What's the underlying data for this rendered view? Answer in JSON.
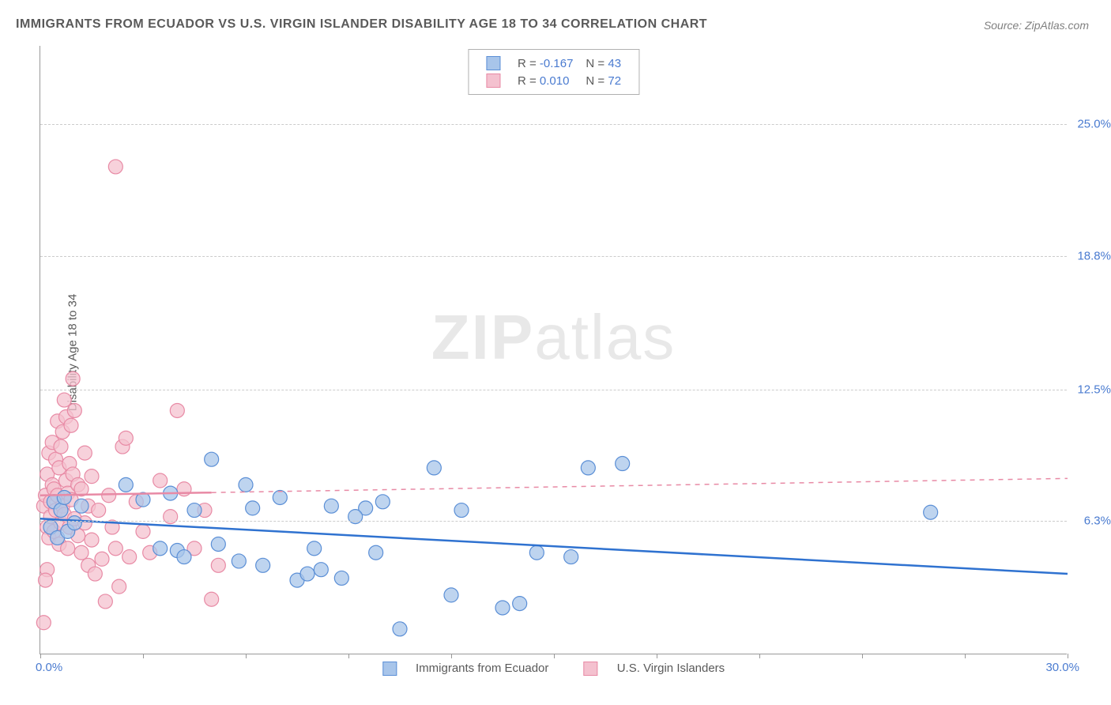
{
  "title": "IMMIGRANTS FROM ECUADOR VS U.S. VIRGIN ISLANDER DISABILITY AGE 18 TO 34 CORRELATION CHART",
  "source": "Source: ZipAtlas.com",
  "ylabel": "Disability Age 18 to 34",
  "watermark_bold": "ZIP",
  "watermark_rest": "atlas",
  "chart": {
    "type": "scatter",
    "background_color": "#ffffff",
    "grid_color": "#cccccc",
    "axis_color": "#999999",
    "label_color": "#5a5a5a",
    "tick_label_color": "#4a7bd0",
    "xlim": [
      0,
      30
    ],
    "ylim": [
      0,
      28.7
    ],
    "x_ticks": [
      0,
      3,
      6,
      9,
      12,
      15,
      18,
      21,
      24,
      27,
      30
    ],
    "x_origin_label": "0.0%",
    "x_max_label": "30.0%",
    "y_gridlines": [
      6.3,
      12.5,
      18.8,
      25.0
    ],
    "y_tick_labels": [
      "6.3%",
      "12.5%",
      "18.8%",
      "25.0%"
    ],
    "marker_radius": 9,
    "marker_stroke_width": 1.2,
    "trend_line_width": 2.5,
    "trend_dash_width": 1.5
  },
  "series": [
    {
      "id": "ecuador",
      "label": "Immigrants from Ecuador",
      "fill_color": "#a8c5ea",
      "stroke_color": "#5b8fd6",
      "line_color": "#2f72d0",
      "R": "-0.167",
      "N": "43",
      "trend": {
        "x1": 0,
        "y1": 6.4,
        "x2": 30,
        "y2": 3.8,
        "style": "solid"
      },
      "points": [
        [
          0.3,
          6.0
        ],
        [
          0.4,
          7.2
        ],
        [
          0.5,
          5.5
        ],
        [
          0.6,
          6.8
        ],
        [
          0.7,
          7.4
        ],
        [
          0.8,
          5.8
        ],
        [
          1.0,
          6.2
        ],
        [
          1.2,
          7.0
        ],
        [
          2.5,
          8.0
        ],
        [
          3.0,
          7.3
        ],
        [
          3.5,
          5.0
        ],
        [
          3.8,
          7.6
        ],
        [
          4.0,
          4.9
        ],
        [
          4.5,
          6.8
        ],
        [
          5.0,
          9.2
        ],
        [
          5.2,
          5.2
        ],
        [
          5.8,
          4.4
        ],
        [
          6.2,
          6.9
        ],
        [
          6.5,
          4.2
        ],
        [
          7.0,
          7.4
        ],
        [
          7.5,
          3.5
        ],
        [
          8.0,
          5.0
        ],
        [
          8.2,
          4.0
        ],
        [
          8.5,
          7.0
        ],
        [
          8.8,
          3.6
        ],
        [
          9.5,
          6.9
        ],
        [
          9.8,
          4.8
        ],
        [
          10.0,
          7.2
        ],
        [
          10.5,
          1.2
        ],
        [
          11.5,
          8.8
        ],
        [
          12.0,
          2.8
        ],
        [
          12.3,
          6.8
        ],
        [
          13.5,
          2.2
        ],
        [
          14.0,
          2.4
        ],
        [
          14.5,
          4.8
        ],
        [
          15.5,
          4.6
        ],
        [
          16.0,
          8.8
        ],
        [
          17.0,
          9.0
        ],
        [
          26.0,
          6.7
        ],
        [
          4.2,
          4.6
        ],
        [
          6.0,
          8.0
        ],
        [
          7.8,
          3.8
        ],
        [
          9.2,
          6.5
        ]
      ]
    },
    {
      "id": "usvi",
      "label": "U.S. Virgin Islanders",
      "fill_color": "#f4c1cf",
      "stroke_color": "#e88aa5",
      "line_color": "#e88aa5",
      "R": "0.010",
      "N": "72",
      "trend": {
        "x1": 0,
        "y1": 7.5,
        "x2": 30,
        "y2": 8.3,
        "style": "solid-then-dashed",
        "solid_until": 5
      },
      "points": [
        [
          0.1,
          7.0
        ],
        [
          0.15,
          7.5
        ],
        [
          0.2,
          6.0
        ],
        [
          0.2,
          8.5
        ],
        [
          0.25,
          5.5
        ],
        [
          0.25,
          9.5
        ],
        [
          0.3,
          7.2
        ],
        [
          0.3,
          6.5
        ],
        [
          0.35,
          8.0
        ],
        [
          0.35,
          10.0
        ],
        [
          0.4,
          5.8
        ],
        [
          0.4,
          7.8
        ],
        [
          0.45,
          9.2
        ],
        [
          0.45,
          6.8
        ],
        [
          0.5,
          11.0
        ],
        [
          0.5,
          7.5
        ],
        [
          0.55,
          8.8
        ],
        [
          0.55,
          5.2
        ],
        [
          0.6,
          6.2
        ],
        [
          0.6,
          9.8
        ],
        [
          0.65,
          7.0
        ],
        [
          0.65,
          10.5
        ],
        [
          0.7,
          12.0
        ],
        [
          0.7,
          6.6
        ],
        [
          0.75,
          8.2
        ],
        [
          0.75,
          11.2
        ],
        [
          0.8,
          5.0
        ],
        [
          0.8,
          7.6
        ],
        [
          0.85,
          9.0
        ],
        [
          0.85,
          6.0
        ],
        [
          0.9,
          10.8
        ],
        [
          0.9,
          7.3
        ],
        [
          0.95,
          8.5
        ],
        [
          0.95,
          13.0
        ],
        [
          1.0,
          6.4
        ],
        [
          1.0,
          11.5
        ],
        [
          1.1,
          5.6
        ],
        [
          1.1,
          8.0
        ],
        [
          1.2,
          7.8
        ],
        [
          1.2,
          4.8
        ],
        [
          1.3,
          9.5
        ],
        [
          1.3,
          6.2
        ],
        [
          1.4,
          7.0
        ],
        [
          1.4,
          4.2
        ],
        [
          1.5,
          8.4
        ],
        [
          1.5,
          5.4
        ],
        [
          1.6,
          3.8
        ],
        [
          1.7,
          6.8
        ],
        [
          1.8,
          4.5
        ],
        [
          1.9,
          2.5
        ],
        [
          2.0,
          7.5
        ],
        [
          2.1,
          6.0
        ],
        [
          2.2,
          5.0
        ],
        [
          2.3,
          3.2
        ],
        [
          2.4,
          9.8
        ],
        [
          2.5,
          10.2
        ],
        [
          2.6,
          4.6
        ],
        [
          2.8,
          7.2
        ],
        [
          3.0,
          5.8
        ],
        [
          3.2,
          4.8
        ],
        [
          3.5,
          8.2
        ],
        [
          3.8,
          6.5
        ],
        [
          4.0,
          11.5
        ],
        [
          4.2,
          7.8
        ],
        [
          4.5,
          5.0
        ],
        [
          4.8,
          6.8
        ],
        [
          5.0,
          2.6
        ],
        [
          5.2,
          4.2
        ],
        [
          0.1,
          1.5
        ],
        [
          2.2,
          23.0
        ],
        [
          0.2,
          4.0
        ],
        [
          0.15,
          3.5
        ]
      ]
    }
  ],
  "legend_top_labels": {
    "R_prefix": "R = ",
    "N_prefix": "N = "
  }
}
